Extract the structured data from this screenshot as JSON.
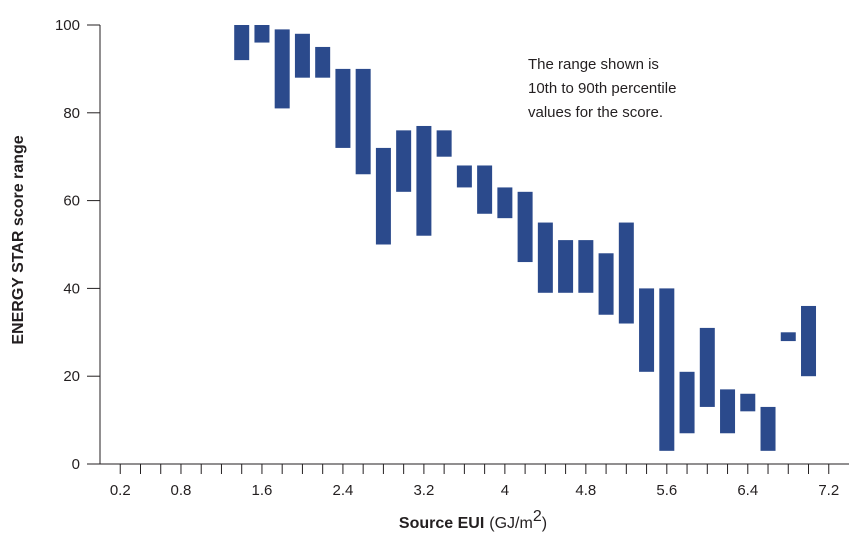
{
  "chart_data": {
    "type": "bar",
    "subtype": "floating-range",
    "title": "",
    "xlabel": "Source EUI",
    "xlabel_unit_prefix": "(GJ/m",
    "xlabel_unit_sup": "2",
    "xlabel_unit_suffix": ")",
    "ylabel": "ENERGY STAR score range",
    "xlim": [
      0,
      7.4
    ],
    "ylim": [
      0,
      100
    ],
    "x_tick_labels": [
      "0.2",
      "0.8",
      "1.6",
      "2.4",
      "3.2",
      "4",
      "4.8",
      "5.6",
      "6.4",
      "7.2"
    ],
    "y_tick_labels": [
      "0",
      "20",
      "40",
      "60",
      "80",
      "100"
    ],
    "grid": false,
    "annotation": [
      "The range shown is",
      "10th to 90th percentile",
      "values for the score."
    ],
    "bar_color": "#2b4a8c",
    "x": [
      1.4,
      1.6,
      1.8,
      2.0,
      2.2,
      2.4,
      2.6,
      2.8,
      3.0,
      3.2,
      3.4,
      3.6,
      3.8,
      4.0,
      4.2,
      4.4,
      4.6,
      4.8,
      5.0,
      5.2,
      5.4,
      5.6,
      5.8,
      6.0,
      6.2,
      6.4,
      6.6,
      6.8,
      7.0
    ],
    "low": [
      92,
      96,
      81,
      88,
      88,
      72,
      66,
      50,
      62,
      52,
      70,
      63,
      57,
      56,
      46,
      39,
      39,
      39,
      34,
      32,
      21,
      3,
      7,
      13,
      7,
      12,
      3,
      28,
      20
    ],
    "high": [
      100,
      100,
      99,
      98,
      95,
      90,
      90,
      72,
      76,
      77,
      76,
      68,
      68,
      63,
      62,
      55,
      51,
      51,
      48,
      55,
      40,
      40,
      21,
      31,
      17,
      16,
      13,
      30,
      36
    ]
  }
}
